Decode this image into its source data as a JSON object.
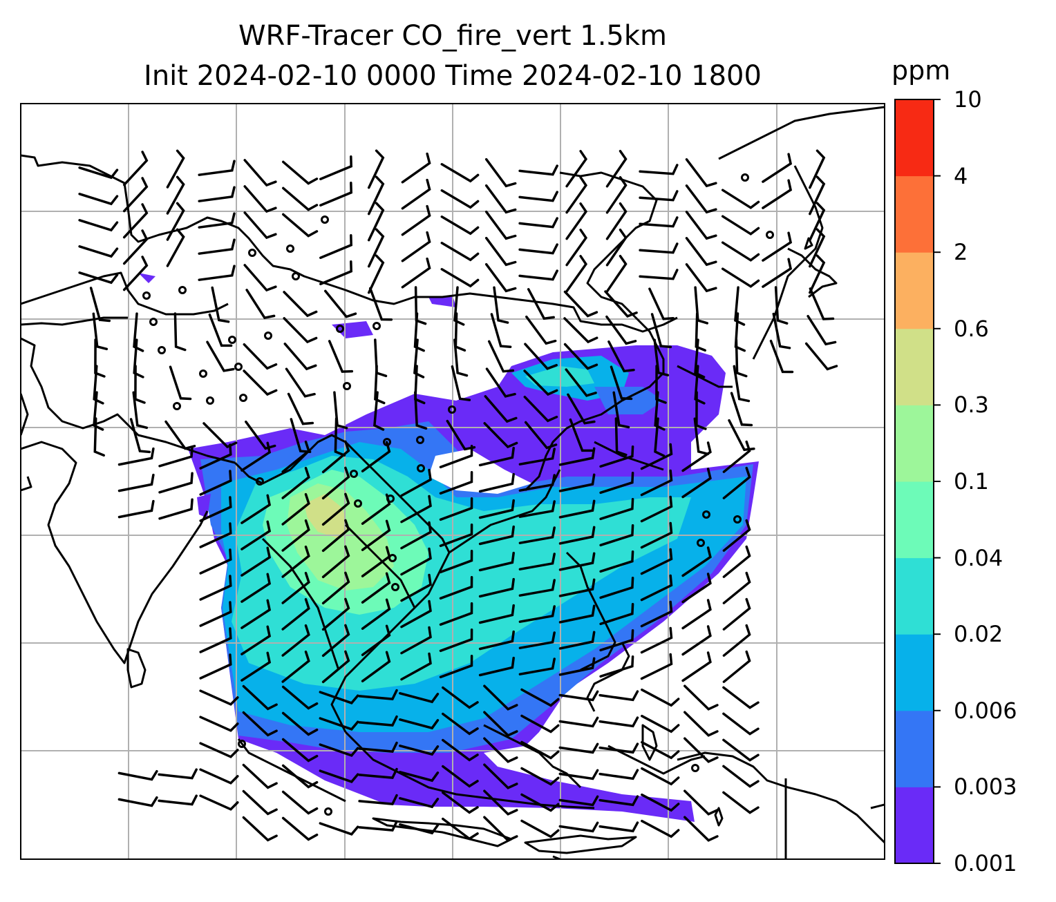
{
  "title": {
    "line1": "WRF-Tracer CO_fire_vert 1.5km",
    "line2": "Init 2024-02-10 0000 Time 2024-02-10 1800"
  },
  "colorbar": {
    "unit": "ppm",
    "levels": [
      "0.001",
      "0.003",
      "0.006",
      "0.02",
      "0.04",
      "0.1",
      "0.3",
      "0.6",
      "2",
      "4",
      "10"
    ],
    "colors": [
      "#6a2bf7",
      "#3476f5",
      "#07b1ea",
      "#2fdfd5",
      "#6dfbb8",
      "#9df69a",
      "#d0e088",
      "#fcb060",
      "#fd7038",
      "#f72a14"
    ]
  },
  "map": {
    "coastline_color": "#000000",
    "gridline_color": "#b0b0b0",
    "barb_color": "#000000"
  }
}
